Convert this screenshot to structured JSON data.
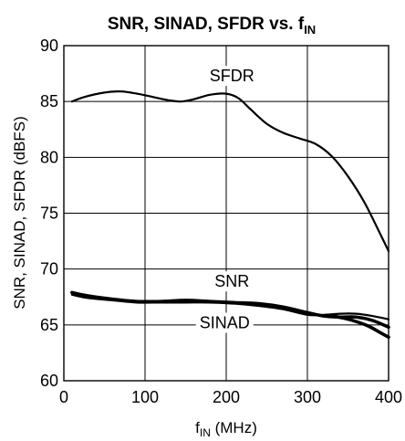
{
  "chart_data": {
    "type": "line",
    "title": "SNR, SINAD, SFDR vs. f",
    "title_subscript": "IN",
    "xlabel": "f",
    "xlabel_subscript": "IN",
    "xlabel_suffix": " (MHz)",
    "ylabel": "SNR, SINAD, SFDR (dBFS)",
    "xlim": [
      0,
      400
    ],
    "ylim": [
      60,
      90
    ],
    "xticks": [
      0,
      100,
      200,
      300,
      400
    ],
    "yticks": [
      60,
      65,
      70,
      75,
      80,
      85,
      90
    ],
    "grid": true,
    "series": [
      {
        "name": "SFDR",
        "x": [
          10,
          25,
          50,
          70,
          90,
          110,
          130,
          145,
          160,
          180,
          200,
          215,
          230,
          250,
          270,
          290,
          310,
          330,
          350,
          370,
          390,
          400
        ],
        "y": [
          85.0,
          85.4,
          85.8,
          85.9,
          85.7,
          85.4,
          85.1,
          85.0,
          85.2,
          85.6,
          85.7,
          85.3,
          84.3,
          83.0,
          82.2,
          81.7,
          81.2,
          80.1,
          78.3,
          76.0,
          73.1,
          71.6
        ],
        "color": "#000000",
        "line_width": "thin"
      },
      {
        "name": "SNR",
        "x": [
          10,
          30,
          60,
          90,
          120,
          150,
          180,
          210,
          240,
          270,
          300,
          320,
          340,
          360,
          380,
          400
        ],
        "y": [
          67.9,
          67.6,
          67.3,
          67.1,
          67.1,
          67.2,
          67.1,
          67.0,
          66.9,
          66.6,
          66.1,
          65.8,
          65.7,
          65.7,
          65.4,
          64.8
        ],
        "color": "#000000",
        "line_width": "thick"
      },
      {
        "name": "SINAD",
        "x": [
          10,
          30,
          60,
          90,
          120,
          150,
          180,
          210,
          240,
          270,
          300,
          320,
          340,
          360,
          380,
          400
        ],
        "y": [
          67.7,
          67.4,
          67.2,
          67.0,
          67.0,
          67.0,
          67.0,
          66.9,
          66.7,
          66.4,
          65.9,
          65.9,
          66.0,
          66.0,
          65.8,
          65.5
        ],
        "color": "#000000",
        "line_width": "thin"
      },
      {
        "name": "SINAD (lower)",
        "x": [
          330,
          345,
          360,
          375,
          390,
          400
        ],
        "y": [
          65.8,
          65.6,
          65.3,
          64.9,
          64.3,
          63.9
        ],
        "color": "#000000",
        "line_width": "thick"
      }
    ],
    "annotations": [
      {
        "text": "SFDR",
        "x": 207,
        "y": 86.8
      },
      {
        "text": "SNR",
        "x": 207,
        "y": 68.4
      },
      {
        "text": "SINAD",
        "x": 198,
        "y": 64.7
      }
    ]
  }
}
